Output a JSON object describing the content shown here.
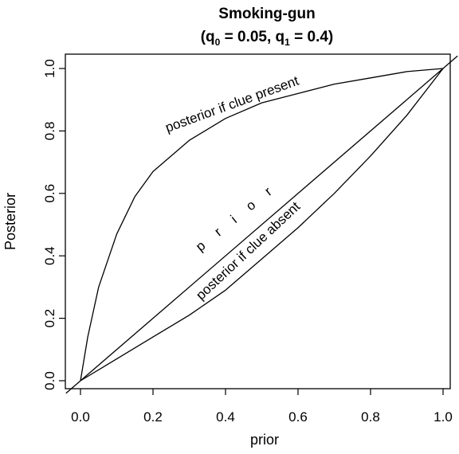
{
  "chart_data": {
    "type": "line",
    "title": "Smoking-gun",
    "subtitle": {
      "open": "(q",
      "q0_sub": "0",
      "q0_rest": " = 0.05, q",
      "q1_sub": "1",
      "q1_rest": " = 0.4)"
    },
    "parameters": {
      "q0": 0.05,
      "q1": 0.4
    },
    "xlabel": "prior",
    "ylabel": "Posterior",
    "xlim": [
      0,
      1
    ],
    "ylim": [
      0,
      1
    ],
    "x_ticks": [
      "0.0",
      "0.2",
      "0.4",
      "0.6",
      "0.8",
      "1.0"
    ],
    "y_ticks": [
      "0.0",
      "0.2",
      "0.4",
      "0.6",
      "0.8",
      "1.0"
    ],
    "grid": false,
    "legend": "none",
    "series": [
      {
        "name": "posterior if clue present",
        "x": [
          0,
          0.02,
          0.05,
          0.1,
          0.15,
          0.2,
          0.3,
          0.4,
          0.5,
          0.6,
          0.7,
          0.8,
          0.9,
          1.0
        ],
        "y": [
          0,
          0.14,
          0.3,
          0.47,
          0.59,
          0.67,
          0.77,
          0.84,
          0.89,
          0.92,
          0.95,
          0.97,
          0.99,
          1.0
        ]
      },
      {
        "name": "p r i o r",
        "x": [
          0,
          1
        ],
        "y": [
          0,
          1
        ]
      },
      {
        "name": "posterior if clue absent",
        "x": [
          0,
          0.1,
          0.2,
          0.3,
          0.4,
          0.5,
          0.6,
          0.7,
          0.8,
          0.9,
          1.0
        ],
        "y": [
          0,
          0.07,
          0.14,
          0.21,
          0.29,
          0.39,
          0.49,
          0.6,
          0.72,
          0.85,
          1.0
        ]
      }
    ]
  }
}
